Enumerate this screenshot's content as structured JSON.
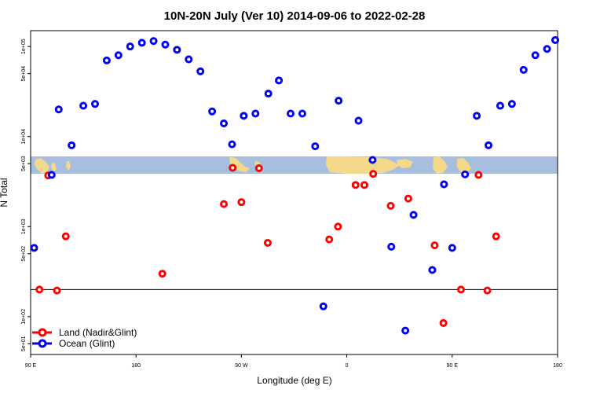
{
  "chart_data": {
    "type": "scatter",
    "title": "10N-20N July (Ver 10)   2014-09-06 to 2022-02-28",
    "xlabel": "Longitude (deg E)",
    "ylabel": "N Total",
    "xlim": [
      90,
      540
    ],
    "ylim": [
      35,
      200000
    ],
    "yscale": "log",
    "reference_line_y": 200,
    "x_ticks": [
      {
        "value": 90,
        "label": "90 E"
      },
      {
        "value": 180,
        "label": "180"
      },
      {
        "value": 270,
        "label": "90 W"
      },
      {
        "value": 360,
        "label": "0"
      },
      {
        "value": 450,
        "label": "90 E"
      },
      {
        "value": 540,
        "label": "180"
      }
    ],
    "y_ticks": [
      {
        "value": 50,
        "label": "5e+01"
      },
      {
        "value": 100,
        "label": "1e+02"
      },
      {
        "value": 500,
        "label": "5e+02"
      },
      {
        "value": 1000,
        "label": "1e+03"
      },
      {
        "value": 5000,
        "label": "5e+03"
      },
      {
        "value": 10000,
        "label": "1e+04"
      },
      {
        "value": 50000,
        "label": "5e+04"
      },
      {
        "value": 100000,
        "label": "1e+05"
      }
    ],
    "legend": {
      "position": "bottom-left",
      "entries": [
        {
          "name": "Land (Nadir&Glint)",
          "color": "#ff0000"
        },
        {
          "name": "Ocean (Glint)",
          "color": "#0000ee"
        }
      ]
    },
    "series": [
      {
        "name": "Land (Nadir&Glint)",
        "color": "#ff0000",
        "points": [
          {
            "x": 97.5,
            "y": 200
          },
          {
            "x": 105,
            "y": 3700
          },
          {
            "x": 112.5,
            "y": 195
          },
          {
            "x": 120,
            "y": 780
          },
          {
            "x": 202.5,
            "y": 300
          },
          {
            "x": 255,
            "y": 1780
          },
          {
            "x": 262.5,
            "y": 4500
          },
          {
            "x": 270,
            "y": 1870
          },
          {
            "x": 285,
            "y": 4450
          },
          {
            "x": 292.5,
            "y": 660
          },
          {
            "x": 345,
            "y": 720
          },
          {
            "x": 352.5,
            "y": 1000
          },
          {
            "x": 367.5,
            "y": 2900
          },
          {
            "x": 375,
            "y": 2900
          },
          {
            "x": 382.5,
            "y": 3850
          },
          {
            "x": 397.5,
            "y": 1700
          },
          {
            "x": 412.5,
            "y": 2050
          },
          {
            "x": 435,
            "y": 620
          },
          {
            "x": 442.5,
            "y": 85
          },
          {
            "x": 457.5,
            "y": 200
          },
          {
            "x": 472.5,
            "y": 3750
          },
          {
            "x": 480,
            "y": 195
          },
          {
            "x": 487.5,
            "y": 780
          }
        ]
      },
      {
        "name": "Ocean (Glint)",
        "color": "#0000ee",
        "points": [
          {
            "x": 93,
            "y": 580
          },
          {
            "x": 108,
            "y": 3750
          },
          {
            "x": 114,
            "y": 20000
          },
          {
            "x": 125,
            "y": 8000
          },
          {
            "x": 135,
            "y": 22000
          },
          {
            "x": 145,
            "y": 23000
          },
          {
            "x": 155,
            "y": 70000
          },
          {
            "x": 165,
            "y": 80000
          },
          {
            "x": 175,
            "y": 100000
          },
          {
            "x": 185,
            "y": 110000
          },
          {
            "x": 195,
            "y": 115000
          },
          {
            "x": 205,
            "y": 105000
          },
          {
            "x": 215,
            "y": 92000
          },
          {
            "x": 225,
            "y": 72000
          },
          {
            "x": 235,
            "y": 53000
          },
          {
            "x": 245,
            "y": 19000
          },
          {
            "x": 255,
            "y": 14000
          },
          {
            "x": 262,
            "y": 8200
          },
          {
            "x": 272,
            "y": 17000
          },
          {
            "x": 282,
            "y": 18000
          },
          {
            "x": 293,
            "y": 30000
          },
          {
            "x": 302,
            "y": 42000
          },
          {
            "x": 312,
            "y": 18000
          },
          {
            "x": 322,
            "y": 18000
          },
          {
            "x": 333,
            "y": 7800
          },
          {
            "x": 340,
            "y": 130
          },
          {
            "x": 353,
            "y": 25000
          },
          {
            "x": 370,
            "y": 15000
          },
          {
            "x": 382,
            "y": 5500
          },
          {
            "x": 398,
            "y": 598
          },
          {
            "x": 410,
            "y": 70
          },
          {
            "x": 417,
            "y": 1350
          },
          {
            "x": 433,
            "y": 330
          },
          {
            "x": 443,
            "y": 2950
          },
          {
            "x": 450,
            "y": 580
          },
          {
            "x": 461,
            "y": 3800
          },
          {
            "x": 471,
            "y": 17000
          },
          {
            "x": 481,
            "y": 8000
          },
          {
            "x": 491,
            "y": 22000
          },
          {
            "x": 501,
            "y": 23000
          },
          {
            "x": 511,
            "y": 55000
          },
          {
            "x": 521,
            "y": 80000
          },
          {
            "x": 531,
            "y": 94000
          },
          {
            "x": 538,
            "y": 118000
          }
        ]
      }
    ]
  }
}
